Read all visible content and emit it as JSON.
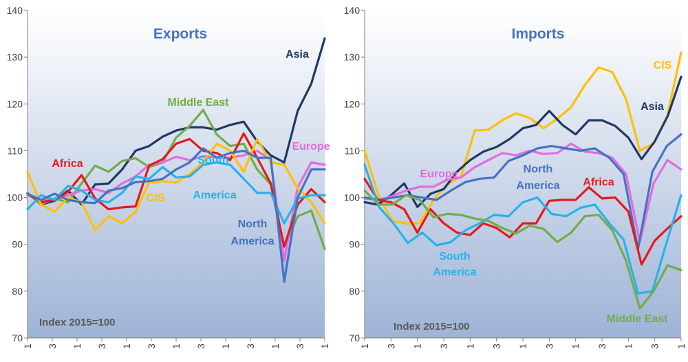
{
  "chart_data": [
    {
      "type": "line",
      "title": "Exports",
      "annotation": "Index 2015=100",
      "ylim": [
        70,
        140
      ],
      "yticks": [
        70,
        80,
        90,
        100,
        110,
        120,
        130,
        140
      ],
      "xticks": [
        "1",
        "3",
        "1",
        "3",
        "1",
        "3",
        "1",
        "3",
        "1",
        "3",
        "1",
        "3",
        "1"
      ],
      "grid": false,
      "series": [
        {
          "name": "Asia",
          "color": "#203864",
          "label": [
            "Asia"
          ],
          "values": [
            101,
            98.5,
            99.3,
            101.5,
            98.5,
            102.8,
            103,
            106,
            110,
            111,
            113,
            114.3,
            115,
            115,
            114.5,
            115.5,
            116.2,
            112,
            109,
            107.5,
            118.5,
            124.3,
            134
          ]
        },
        {
          "name": "Middle East",
          "color": "#70AD47",
          "label": [
            "Middle East"
          ],
          "values": [
            101,
            98.5,
            99.8,
            99,
            103,
            106.8,
            105.5,
            107.8,
            108.4,
            106.5,
            107.5,
            112.8,
            115.3,
            118.7,
            113.5,
            111,
            111.5,
            106,
            102.8,
            89.5,
            96,
            97.2,
            89
          ]
        },
        {
          "name": "Europe",
          "color": "#E36CDB",
          "label": [
            "Europe"
          ],
          "values": [
            100.5,
            99.5,
            99.6,
            100.5,
            101.5,
            101.8,
            101,
            103,
            104.5,
            107,
            107.5,
            108.7,
            108,
            108.8,
            108.6,
            108.5,
            109,
            110,
            108,
            86.5,
            102.2,
            107.5,
            107
          ]
        },
        {
          "name": "Africa",
          "color": "#E31A1A",
          "label": [
            "Africa"
          ],
          "values": [
            100.8,
            99,
            99.5,
            101.2,
            104.8,
            99.8,
            97.5,
            97.9,
            98.1,
            106.8,
            108.2,
            111.5,
            112.5,
            110,
            109.5,
            108,
            113.7,
            108.5,
            103,
            89.5,
            98.5,
            101.8,
            99
          ]
        },
        {
          "name": "CIS",
          "color": "#FFC000",
          "label": [
            "CIS"
          ],
          "values": [
            105.5,
            98.5,
            97,
            100,
            99,
            93,
            96,
            94.5,
            97,
            103.2,
            103.5,
            103.2,
            105,
            107.5,
            111.5,
            110,
            105.5,
            112.5,
            107.5,
            107,
            102,
            99,
            94.5
          ]
        },
        {
          "name": "South America",
          "color": "#26B2EA",
          "label": [
            "South",
            "America"
          ],
          "values": [
            97.5,
            100.5,
            99.5,
            102.5,
            101.5,
            99.5,
            99,
            101,
            104.5,
            104,
            106.5,
            104.3,
            104.5,
            107,
            107.5,
            107,
            104,
            101,
            101,
            94.5,
            99.8,
            100.5,
            100.5
          ]
        },
        {
          "name": "North America",
          "color": "#4472C4",
          "label": [
            "North",
            "America"
          ],
          "values": [
            100.8,
            99.5,
            100.8,
            99.5,
            99,
            98.8,
            101.5,
            102,
            103.3,
            103.5,
            104,
            106,
            107.5,
            110.5,
            108.5,
            109.5,
            110,
            108.5,
            108.5,
            82,
            100,
            106,
            106
          ]
        }
      ]
    },
    {
      "type": "line",
      "title": "Imports",
      "annotation": "Index 2015=100",
      "ylim": [
        70,
        140
      ],
      "yticks": [
        70,
        80,
        90,
        100,
        110,
        120,
        130,
        140
      ],
      "xticks": [
        "1",
        "3",
        "1",
        "3",
        "1",
        "3",
        "1",
        "3",
        "1",
        "3",
        "1",
        "3",
        "1"
      ],
      "grid": false,
      "series": [
        {
          "name": "CIS",
          "color": "#FFC000",
          "label": [
            "CIS"
          ],
          "values": [
            110,
            100.5,
            95,
            94.5,
            94.5,
            99.5,
            102.8,
            104.5,
            114.3,
            114.5,
            116.5,
            118,
            117,
            114.8,
            116.8,
            119.3,
            124,
            127.8,
            126.8,
            121,
            110,
            111.5,
            117.5,
            131
          ]
        },
        {
          "name": "Asia",
          "color": "#203864",
          "label": [
            "Asia"
          ],
          "values": [
            99,
            98.5,
            100.5,
            103,
            98,
            100.8,
            101.8,
            105.5,
            108,
            109.8,
            110.8,
            112.5,
            114.8,
            115.5,
            118.5,
            115.5,
            113.5,
            116.5,
            116.5,
            115.3,
            112.8,
            108.2,
            112,
            117.5,
            125.8
          ]
        },
        {
          "name": "Europe",
          "color": "#E36CDB",
          "label": [
            "Europe"
          ],
          "values": [
            99.8,
            99.5,
            100.3,
            101.5,
            102.3,
            102.3,
            103.8,
            104.3,
            106.5,
            108,
            109.5,
            109,
            110,
            109.3,
            109.5,
            111.5,
            109.8,
            109.5,
            108.5,
            105,
            90.5,
            103,
            108,
            106
          ]
        },
        {
          "name": "North America",
          "color": "#4472C4",
          "label": [
            "North",
            "America"
          ],
          "values": [
            100,
            99.5,
            100,
            100.5,
            100,
            99.5,
            101.5,
            103.3,
            104,
            104.3,
            107.8,
            109,
            110.5,
            111,
            110.5,
            110,
            110.5,
            108.5,
            105,
            89,
            105.5,
            111,
            113.5
          ]
        },
        {
          "name": "Africa",
          "color": "#E31A1A",
          "label": [
            "Africa"
          ],
          "values": [
            104,
            99.5,
            99,
            97.5,
            92.5,
            97.5,
            94.5,
            92.5,
            92,
            94.5,
            93.5,
            91.5,
            94.5,
            94.5,
            99.3,
            99.5,
            99.5,
            102.2,
            99.8,
            100,
            97,
            85.7,
            90.8,
            93.5,
            96
          ]
        },
        {
          "name": "South America",
          "color": "#26B2EA",
          "label": [
            "South",
            "America"
          ],
          "values": [
            107,
            98,
            94.5,
            90.3,
            92.5,
            89.8,
            90.5,
            93,
            94.5,
            96.3,
            96,
            99,
            100,
            96.5,
            96,
            97.8,
            98.5,
            94.5,
            91,
            79.5,
            80,
            90.5,
            100.5
          ]
        },
        {
          "name": "Middle East",
          "color": "#70AD47",
          "label": [
            "Middle East"
          ],
          "values": [
            101.5,
            98.5,
            98.5,
            100.5,
            99.5,
            95.8,
            96.5,
            96.3,
            95.5,
            95,
            93.5,
            92.3,
            94,
            93.3,
            90.5,
            92.5,
            96,
            96.3,
            93,
            86.5,
            76.3,
            80,
            85.5,
            84.5
          ]
        }
      ]
    }
  ]
}
